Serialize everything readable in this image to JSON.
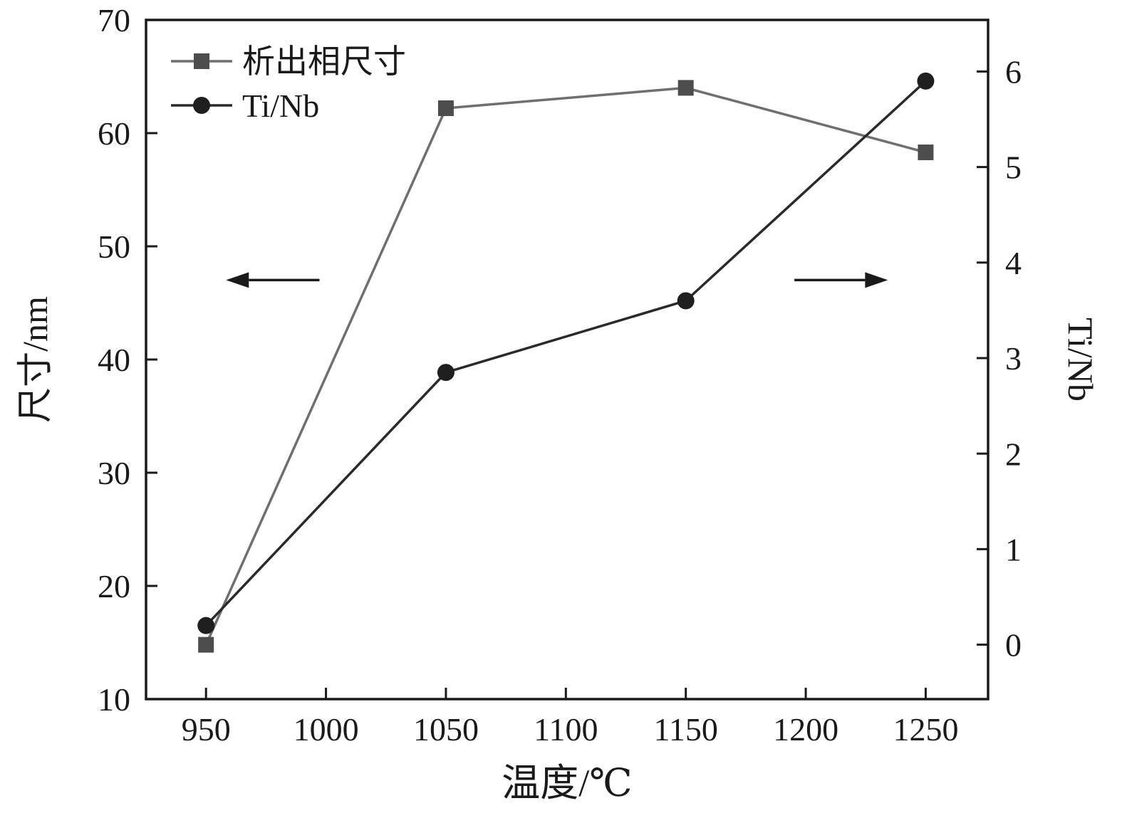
{
  "chart_data": {
    "type": "line",
    "title": "",
    "xlabel": "温度/℃",
    "ylabel_left": "尺寸/nm",
    "ylabel_right": "Ti/Nb",
    "x": [
      950,
      1050,
      1150,
      1250
    ],
    "series": [
      {
        "name": "析出相尺寸",
        "axis": "left",
        "marker": "square",
        "color": "#6f6f6f",
        "marker_color": "#4d4d4d",
        "values": [
          14.8,
          62.2,
          64.0,
          58.3
        ]
      },
      {
        "name": "Ti/Nb",
        "axis": "right",
        "marker": "circle",
        "color": "#2a2a2a",
        "marker_color": "#1f1f1f",
        "values": [
          0.2,
          2.85,
          3.6,
          5.9
        ]
      }
    ],
    "xlim": [
      925,
      1276
    ],
    "ylim_left": [
      10,
      70
    ],
    "ylim_right": [
      -0.57,
      6.54
    ],
    "x_ticks": [
      950,
      1000,
      1050,
      1100,
      1150,
      1200,
      1250
    ],
    "y_ticks_left": [
      10,
      20,
      30,
      40,
      50,
      60,
      70
    ],
    "y_ticks_right": [
      0,
      1,
      2,
      3,
      4,
      5,
      6
    ],
    "grid": false,
    "legend_position": "top-left",
    "axis_color": "#1a1a1a",
    "annotations": [
      {
        "type": "arrow",
        "direction": "left",
        "x_frac_start": 0.206,
        "x_frac_tip": 0.095,
        "y_frac": 0.383
      },
      {
        "type": "arrow",
        "direction": "right",
        "x_frac_start": 0.77,
        "x_frac_tip": 0.881,
        "y_frac": 0.383
      }
    ]
  }
}
